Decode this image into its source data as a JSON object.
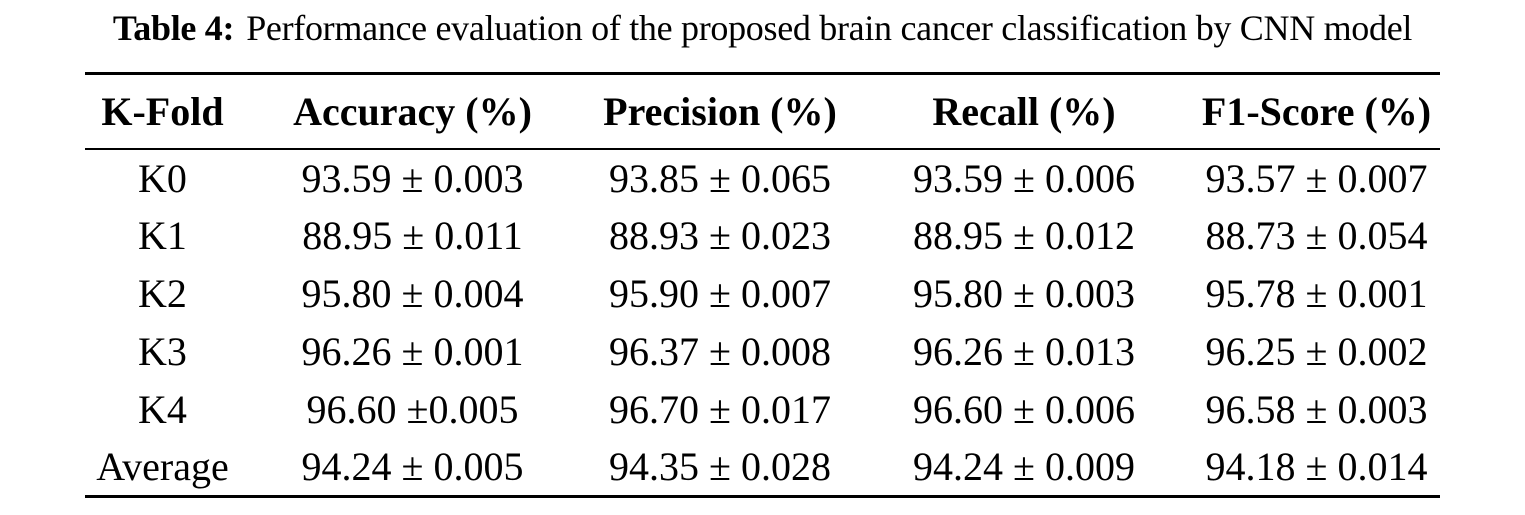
{
  "caption": {
    "label": "Table 4:",
    "text": "Performance evaluation of the proposed brain cancer classification by CNN model"
  },
  "table": {
    "headers": [
      "K-Fold",
      "Accuracy (%)",
      "Precision (%)",
      "Recall (%)",
      "F1-Score (%)"
    ],
    "rows": [
      [
        "K0",
        "93.59 ± 0.003",
        "93.85 ± 0.065",
        "93.59 ± 0.006",
        "93.57 ± 0.007"
      ],
      [
        "K1",
        "88.95 ± 0.011",
        "88.93 ± 0.023",
        "88.95 ± 0.012",
        "88.73 ± 0.054"
      ],
      [
        "K2",
        "95.80 ± 0.004",
        "95.90 ± 0.007",
        "95.80 ± 0.003",
        "95.78 ± 0.001"
      ],
      [
        "K3",
        "96.26 ± 0.001",
        "96.37 ± 0.008",
        "96.26 ± 0.013",
        "96.25 ± 0.002"
      ],
      [
        "K4",
        "96.60 ±0.005",
        "96.70 ± 0.017",
        "96.60 ± 0.006",
        "96.58 ± 0.003"
      ],
      [
        "Average",
        "94.24 ± 0.005",
        "94.35 ± 0.028",
        "94.24 ± 0.009",
        "94.18 ± 0.014"
      ]
    ]
  }
}
